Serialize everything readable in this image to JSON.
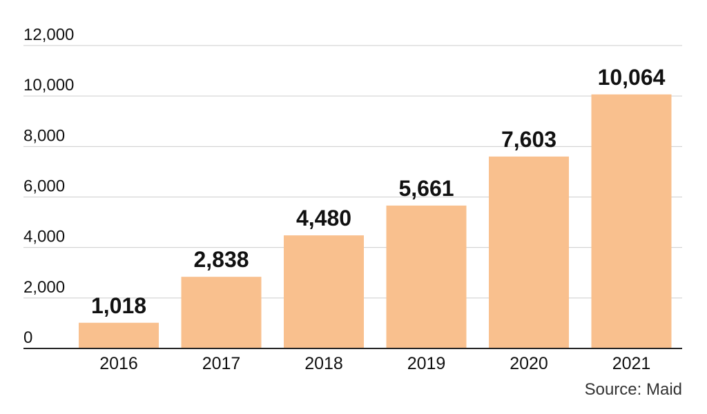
{
  "chart_data": {
    "type": "bar",
    "categories": [
      "2016",
      "2017",
      "2018",
      "2019",
      "2020",
      "2021"
    ],
    "values": [
      1018,
      2838,
      4480,
      5661,
      7603,
      10064
    ],
    "data_labels": [
      "1,018",
      "2,838",
      "4,480",
      "5,661",
      "7,603",
      "10,064"
    ],
    "y_ticks": [
      0,
      2000,
      4000,
      6000,
      8000,
      10000,
      12000
    ],
    "y_tick_labels": [
      "0",
      "2,000",
      "4,000",
      "6,000",
      "8,000",
      "10,000",
      "12,000"
    ],
    "ylim": [
      0,
      12000
    ],
    "grid": true,
    "legend": "none",
    "title": "",
    "xlabel": "",
    "ylabel": "",
    "source": "Source: Maid"
  },
  "colors": {
    "bar": "#f9c08e",
    "gridline": "#cccccc",
    "axis": "#222222",
    "text": "#111111",
    "background": "#ffffff"
  }
}
